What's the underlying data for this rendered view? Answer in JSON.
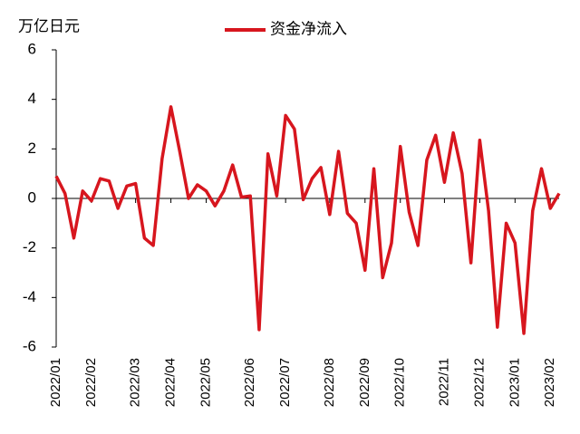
{
  "chart_data": {
    "type": "line",
    "y_label": "万亿日元",
    "categories": [
      "2022/01",
      null,
      null,
      null,
      "2022/02",
      null,
      null,
      null,
      null,
      "2022/03",
      null,
      null,
      null,
      "2022/04",
      null,
      null,
      null,
      "2022/05",
      null,
      null,
      null,
      null,
      "2022/06",
      null,
      null,
      null,
      "2022/07",
      null,
      null,
      null,
      null,
      "2022/08",
      null,
      null,
      null,
      "2022/09",
      null,
      null,
      null,
      "2022/10",
      null,
      null,
      null,
      null,
      "2022/11",
      null,
      null,
      null,
      "2022/12",
      null,
      null,
      null,
      "2023/01",
      null,
      null,
      null,
      "2023/02",
      null
    ],
    "series": [
      {
        "name": "资金净流入",
        "color": "#d7161e",
        "values": [
          0.9,
          0.2,
          -1.6,
          0.3,
          -0.1,
          0.8,
          0.7,
          -0.4,
          0.5,
          0.6,
          -1.6,
          -1.9,
          1.6,
          3.7,
          1.9,
          0,
          0.55,
          0.3,
          -0.3,
          0.3,
          1.35,
          0.05,
          0.1,
          -5.3,
          1.8,
          0.1,
          3.35,
          2.8,
          -0.05,
          0.8,
          1.25,
          -0.65,
          1.9,
          -0.6,
          -1.0,
          -2.9,
          1.2,
          -3.2,
          -1.8,
          2.1,
          -0.55,
          -1.9,
          1.55,
          2.55,
          0.65,
          2.65,
          1.0,
          -2.6,
          2.35,
          -0.5,
          -5.2,
          -1.0,
          -1.8,
          -5.45,
          -0.5,
          1.2,
          -0.4,
          0.2
        ]
      }
    ],
    "ylim": [
      -6,
      6
    ],
    "yticks": [
      -6,
      -4,
      -2,
      0,
      2,
      4,
      6
    ],
    "legend": "top"
  }
}
